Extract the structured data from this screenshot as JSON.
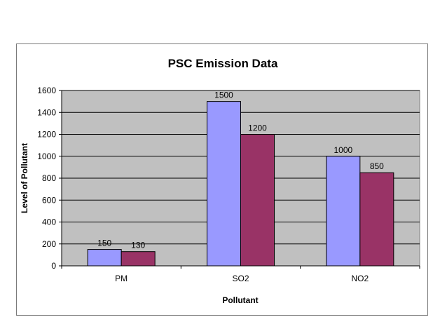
{
  "chart_data": {
    "type": "bar",
    "title": "PSC Emission Data",
    "xlabel": "Pollutant",
    "ylabel": "Level of Pollutant",
    "categories": [
      "PM",
      "SO2",
      "NO2"
    ],
    "series": [
      {
        "values": [
          150,
          1500,
          1000
        ],
        "color": "#9999ff"
      },
      {
        "values": [
          130,
          1200,
          850
        ],
        "color": "#993366"
      }
    ],
    "ylim": [
      0,
      1600
    ],
    "yticks": [
      "0",
      "200",
      "400",
      "600",
      "800",
      "1000",
      "1200",
      "1400",
      "1600"
    ],
    "data_labels": [
      [
        "150",
        "1500",
        "1000"
      ],
      [
        "130",
        "1200",
        "850"
      ]
    ],
    "plot_background": "#c0c0c0",
    "grid": true,
    "legend": "none"
  }
}
